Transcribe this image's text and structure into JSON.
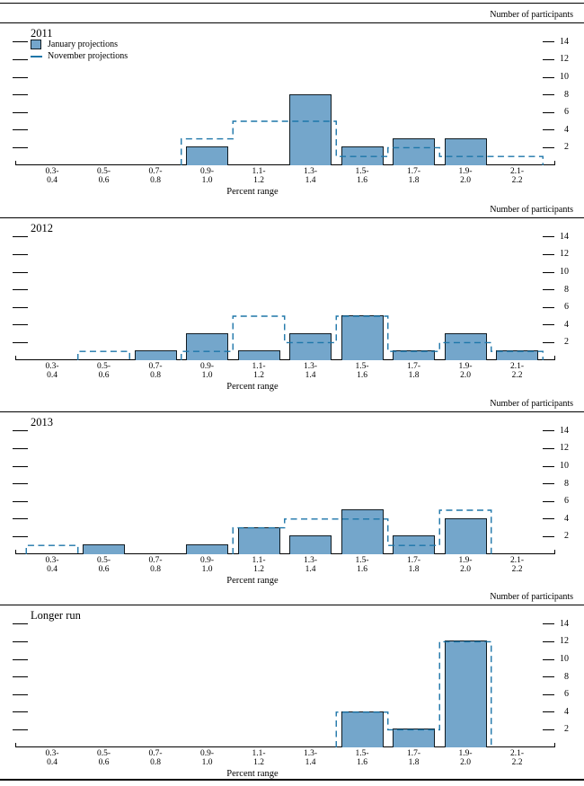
{
  "figure": {
    "y_axis_title": "Number of participants",
    "x_axis_title": "Percent range",
    "legend": [
      {
        "swatch": "bar",
        "label": "January projections"
      },
      {
        "swatch": "dash",
        "label": "November projections"
      }
    ],
    "colors": {
      "bar_fill": "#74a6cb",
      "bar_border": "#101b22",
      "november_dash": "#1d76a9",
      "rule": "#000000"
    }
  },
  "chart_data": [
    {
      "type": "bar",
      "title": "2011",
      "xlabel": "Percent range",
      "ylabel": "Number of participants",
      "categories": [
        "0.3-0.4",
        "0.5-0.6",
        "0.7-0.8",
        "0.9-1.0",
        "1.1-1.2",
        "1.3-1.4",
        "1.5-1.6",
        "1.7-1.8",
        "1.9-2.0",
        "2.1-2.2"
      ],
      "y_ticks": [
        2,
        4,
        6,
        8,
        10,
        12,
        14
      ],
      "ylim": [
        0,
        16
      ],
      "grid": false,
      "legend_position": "top-left",
      "series": [
        {
          "name": "January projections",
          "style": "filled-bar",
          "values": [
            0,
            0,
            0,
            2,
            0,
            8,
            2,
            3,
            3,
            0
          ]
        },
        {
          "name": "November projections",
          "style": "dashed-step",
          "values": [
            0,
            0,
            0,
            3,
            5,
            5,
            1,
            2,
            1,
            1
          ]
        }
      ]
    },
    {
      "type": "bar",
      "title": "2012",
      "xlabel": "Percent range",
      "ylabel": "Number of participants",
      "categories": [
        "0.3-0.4",
        "0.5-0.6",
        "0.7-0.8",
        "0.9-1.0",
        "1.1-1.2",
        "1.3-1.4",
        "1.5-1.6",
        "1.7-1.8",
        "1.9-2.0",
        "2.1-2.2"
      ],
      "y_ticks": [
        2,
        4,
        6,
        8,
        10,
        12,
        14
      ],
      "ylim": [
        0,
        16
      ],
      "grid": false,
      "series": [
        {
          "name": "January projections",
          "style": "filled-bar",
          "values": [
            0,
            0,
            1,
            3,
            1,
            3,
            5,
            1,
            3,
            1
          ]
        },
        {
          "name": "November projections",
          "style": "dashed-step",
          "values": [
            0,
            1,
            0,
            1,
            5,
            2,
            5,
            1,
            2,
            1
          ]
        }
      ]
    },
    {
      "type": "bar",
      "title": "2013",
      "xlabel": "Percent range",
      "ylabel": "Number of participants",
      "categories": [
        "0.3-0.4",
        "0.5-0.6",
        "0.7-0.8",
        "0.9-1.0",
        "1.1-1.2",
        "1.3-1.4",
        "1.5-1.6",
        "1.7-1.8",
        "1.9-2.0",
        "2.1-2.2"
      ],
      "y_ticks": [
        2,
        4,
        6,
        8,
        10,
        12,
        14
      ],
      "ylim": [
        0,
        16
      ],
      "grid": false,
      "series": [
        {
          "name": "January projections",
          "style": "filled-bar",
          "values": [
            0,
            1,
            0,
            1,
            3,
            2,
            5,
            2,
            4,
            0
          ]
        },
        {
          "name": "November projections",
          "style": "dashed-step",
          "values": [
            1,
            0,
            0,
            0,
            3,
            4,
            4,
            1,
            5,
            0
          ]
        }
      ]
    },
    {
      "type": "bar",
      "title": "Longer run",
      "xlabel": "Percent range",
      "ylabel": "Number of participants",
      "categories": [
        "0.3-0.4",
        "0.5-0.6",
        "0.7-0.8",
        "0.9-1.0",
        "1.1-1.2",
        "1.3-1.4",
        "1.5-1.6",
        "1.7-1.8",
        "1.9-2.0",
        "2.1-2.2"
      ],
      "y_ticks": [
        2,
        4,
        6,
        8,
        10,
        12,
        14
      ],
      "ylim": [
        0,
        16
      ],
      "grid": false,
      "series": [
        {
          "name": "January projections",
          "style": "filled-bar",
          "values": [
            0,
            0,
            0,
            0,
            0,
            0,
            4,
            2,
            12,
            0
          ]
        },
        {
          "name": "November projections",
          "style": "dashed-step",
          "values": [
            0,
            0,
            0,
            0,
            0,
            0,
            4,
            2,
            12,
            0
          ]
        }
      ]
    }
  ]
}
